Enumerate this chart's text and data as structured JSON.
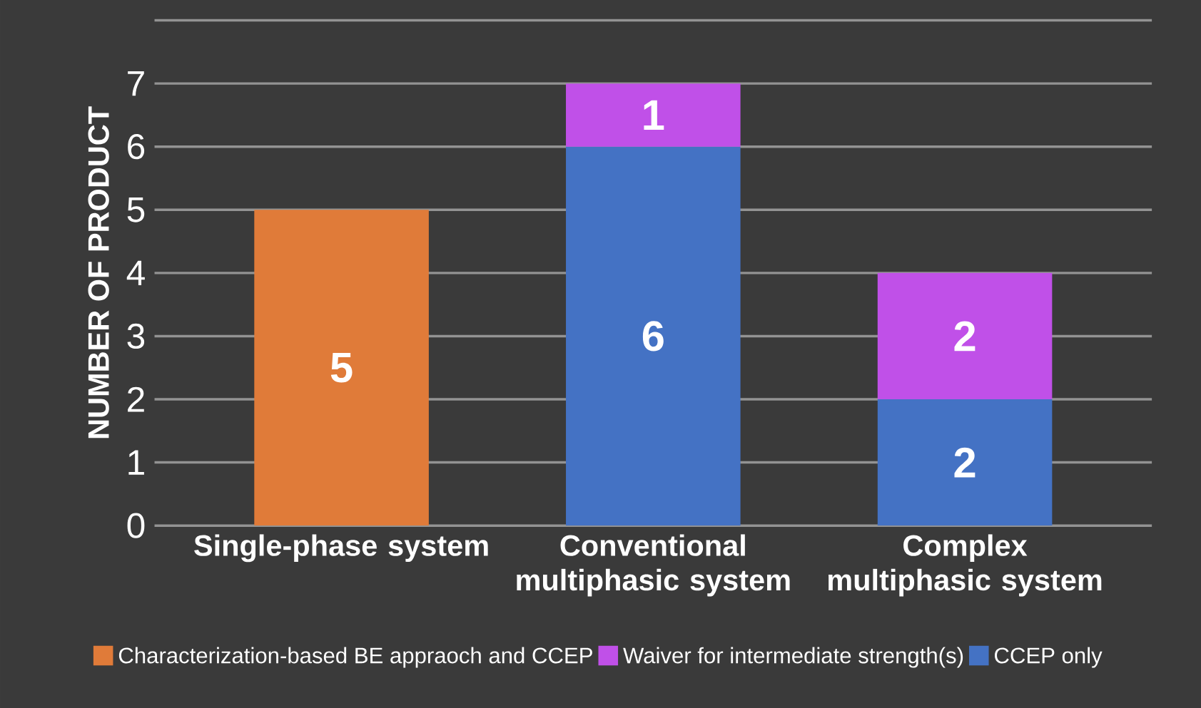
{
  "chart_data": {
    "type": "bar",
    "stacked": true,
    "ylabel": "NUMBER OF PRODUCT",
    "categories": [
      "Single-phase system",
      "Conventional multiphasic system",
      "Complex multiphasic  system"
    ],
    "series": [
      {
        "name": "CCEP only",
        "color": "#4472c4",
        "values": [
          null,
          6,
          2
        ],
        "value_labels": [
          null,
          "6",
          "2"
        ]
      },
      {
        "name": "Waiver for intermediate strength(s)",
        "color": "#c050e8",
        "values": [
          null,
          1,
          2
        ],
        "value_labels": [
          null,
          "1",
          "2"
        ]
      },
      {
        "name": "Characterization-based BE appraoch and CCEP",
        "color": "#e07b39",
        "values": [
          5,
          null,
          null
        ],
        "value_labels": [
          "5",
          null,
          null
        ]
      }
    ],
    "ylim": [
      0,
      8
    ],
    "yticks": [
      0,
      1,
      2,
      3,
      4,
      5,
      6,
      7,
      {
        "value": 8,
        "label": null
      }
    ],
    "grid": "y",
    "legend": "bottom"
  }
}
